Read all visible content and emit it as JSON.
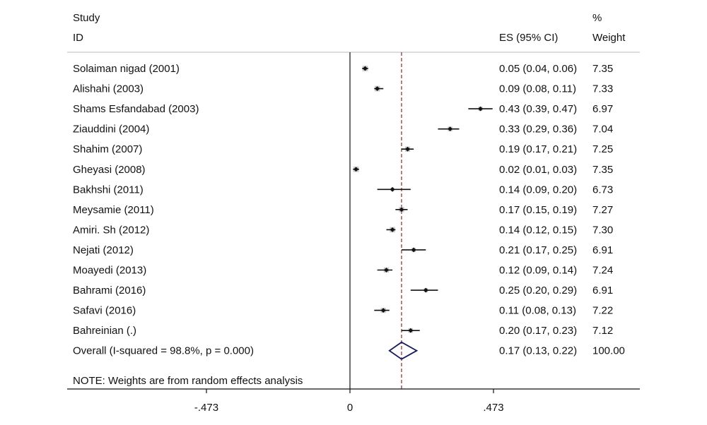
{
  "header": {
    "study_label": "Study",
    "id_label": "ID",
    "es_label": "ES (95% CI)",
    "pct_label": "%",
    "weight_label": "Weight"
  },
  "note": "NOTE: Weights are from random effects analysis",
  "colors": {
    "point": "#111111",
    "weight_box": "#c8c8c8",
    "ci_line": "#111111",
    "overall_line": "#8b2a2a",
    "diamond": "#1a1a5e",
    "axis": "#111111"
  },
  "chart_data": {
    "type": "forest",
    "x_axis": {
      "ticks": [
        -0.473,
        0,
        0.473
      ],
      "tick_labels": [
        "-.473",
        "0",
        ".473"
      ],
      "range": [
        -0.473,
        0.473
      ]
    },
    "null_line": 0,
    "studies": [
      {
        "label": "Solaiman nigad (2001)",
        "es": 0.05,
        "lo": 0.04,
        "hi": 0.06,
        "es_text": "0.05 (0.04, 0.06)",
        "weight": "7.35"
      },
      {
        "label": "Alishahi (2003)",
        "es": 0.09,
        "lo": 0.08,
        "hi": 0.11,
        "es_text": "0.09 (0.08, 0.11)",
        "weight": "7.33"
      },
      {
        "label": "Shams Esfandabad (2003)",
        "es": 0.43,
        "lo": 0.39,
        "hi": 0.47,
        "es_text": "0.43 (0.39, 0.47)",
        "weight": "6.97"
      },
      {
        "label": "Ziauddini (2004)",
        "es": 0.33,
        "lo": 0.29,
        "hi": 0.36,
        "es_text": "0.33 (0.29, 0.36)",
        "weight": "7.04"
      },
      {
        "label": "Shahim (2007)",
        "es": 0.19,
        "lo": 0.17,
        "hi": 0.21,
        "es_text": "0.19 (0.17, 0.21)",
        "weight": "7.25"
      },
      {
        "label": "Gheyasi (2008)",
        "es": 0.02,
        "lo": 0.01,
        "hi": 0.03,
        "es_text": "0.02 (0.01, 0.03)",
        "weight": "7.35"
      },
      {
        "label": "Bakhshi (2011)",
        "es": 0.14,
        "lo": 0.09,
        "hi": 0.2,
        "es_text": "0.14 (0.09, 0.20)",
        "weight": "6.73"
      },
      {
        "label": "Meysamie (2011)",
        "es": 0.17,
        "lo": 0.15,
        "hi": 0.19,
        "es_text": "0.17 (0.15, 0.19)",
        "weight": "7.27"
      },
      {
        "label": "Amiri. Sh (2012)",
        "es": 0.14,
        "lo": 0.12,
        "hi": 0.15,
        "es_text": "0.14 (0.12, 0.15)",
        "weight": "7.30"
      },
      {
        "label": "Nejati (2012)",
        "es": 0.21,
        "lo": 0.17,
        "hi": 0.25,
        "es_text": "0.21 (0.17, 0.25)",
        "weight": "6.91"
      },
      {
        "label": "Moayedi (2013)",
        "es": 0.12,
        "lo": 0.09,
        "hi": 0.14,
        "es_text": "0.12 (0.09, 0.14)",
        "weight": "7.24"
      },
      {
        "label": "Bahrami (2016)",
        "es": 0.25,
        "lo": 0.2,
        "hi": 0.29,
        "es_text": "0.25 (0.20, 0.29)",
        "weight": "6.91"
      },
      {
        "label": "Safavi (2016)",
        "es": 0.11,
        "lo": 0.08,
        "hi": 0.13,
        "es_text": "0.11 (0.08, 0.13)",
        "weight": "7.22"
      },
      {
        "label": "Bahreinian (.)",
        "es": 0.2,
        "lo": 0.17,
        "hi": 0.23,
        "es_text": "0.20 (0.17, 0.23)",
        "weight": "7.12"
      }
    ],
    "overall": {
      "label": "Overall  (I-squared = 98.8%, p = 0.000)",
      "es": 0.17,
      "lo": 0.13,
      "hi": 0.22,
      "es_text": "0.17 (0.13, 0.22)",
      "weight": "100.00"
    }
  }
}
